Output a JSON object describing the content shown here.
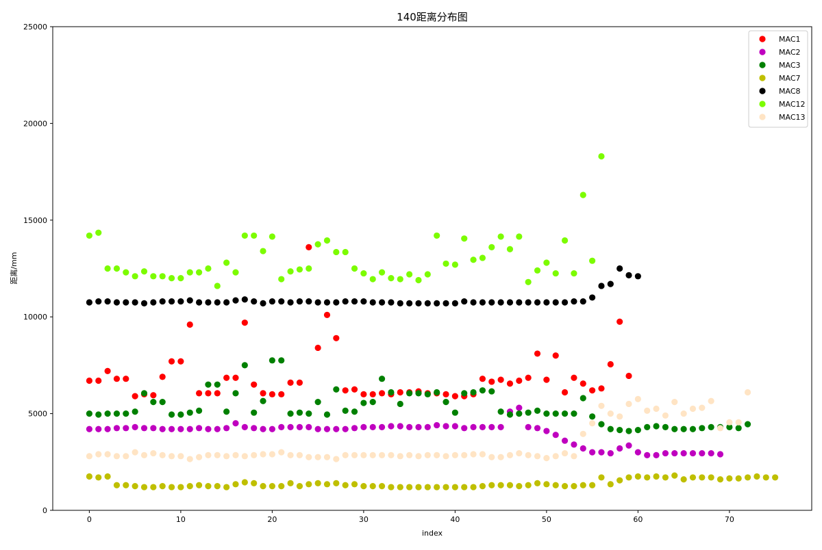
{
  "chart_data": {
    "type": "scatter",
    "title": "140距离分布图",
    "xlabel": "index",
    "ylabel": "距离/mm",
    "xlim": [
      -4,
      79
    ],
    "ylim": [
      0,
      25000
    ],
    "xticks": [
      0,
      10,
      20,
      30,
      40,
      50,
      60,
      70
    ],
    "yticks": [
      0,
      5000,
      10000,
      15000,
      20000,
      25000
    ],
    "grid": false,
    "legend": "top-right",
    "series": [
      {
        "name": "MAC1",
        "color": "#ff0000",
        "values": [
          6700,
          6700,
          7200,
          6800,
          6800,
          5900,
          6000,
          5950,
          6900,
          7700,
          7700,
          9600,
          6050,
          6050,
          6050,
          6850,
          6850,
          9700,
          6500,
          6050,
          6000,
          6000,
          6600,
          6600,
          13600,
          8400,
          10100,
          8900,
          6200,
          6250,
          6000,
          6000,
          6050,
          6000,
          6100,
          6100,
          6150,
          6050,
          6050,
          6000,
          5900,
          5900,
          6000,
          6800,
          6650,
          6750,
          6550,
          6700,
          6850,
          8100,
          6750,
          8000,
          6100,
          6850,
          6550,
          6200,
          6300,
          7550,
          9750,
          6950
        ]
      },
      {
        "name": "MAC2",
        "color": "#bf00bf",
        "values": [
          4200,
          4200,
          4200,
          4250,
          4250,
          4300,
          4250,
          4250,
          4200,
          4200,
          4200,
          4200,
          4250,
          4200,
          4200,
          4250,
          4500,
          4300,
          4250,
          4200,
          4200,
          4300,
          4300,
          4300,
          4300,
          4200,
          4200,
          4200,
          4200,
          4250,
          4300,
          4300,
          4300,
          4350,
          4350,
          4300,
          4300,
          4300,
          4400,
          4350,
          4350,
          4250,
          4300,
          4300,
          4300,
          4300,
          5100,
          5300,
          4300,
          4250,
          4100,
          3900,
          3600,
          3400,
          3200,
          3000,
          3000,
          2950,
          3200,
          3350,
          3000,
          2850,
          2850,
          2950,
          2950,
          2950,
          2950,
          2950,
          2950,
          2900
        ]
      },
      {
        "name": "MAC3",
        "color": "#008000",
        "values": [
          5000,
          4950,
          5000,
          5000,
          5000,
          5100,
          6050,
          5600,
          5600,
          4950,
          4950,
          5050,
          5150,
          6500,
          6500,
          5100,
          6050,
          7500,
          5050,
          5650,
          7750,
          7750,
          5000,
          5050,
          5000,
          5600,
          4950,
          6250,
          5150,
          5100,
          5550,
          5600,
          6800,
          6100,
          5500,
          6050,
          6050,
          6000,
          6100,
          5600,
          5050,
          6050,
          6100,
          6200,
          6150,
          5100,
          4950,
          5000,
          5050,
          5150,
          5000,
          5000,
          5000,
          5000,
          5800,
          4850,
          4450,
          4200,
          4150,
          4100,
          4150,
          4300,
          4350,
          4300,
          4200,
          4200,
          4200,
          4250,
          4300,
          4300,
          4300,
          4250,
          4450
        ]
      },
      {
        "name": "MAC7",
        "color": "#bfbf00",
        "values": [
          1750,
          1700,
          1750,
          1300,
          1300,
          1250,
          1200,
          1200,
          1250,
          1200,
          1200,
          1250,
          1300,
          1250,
          1250,
          1200,
          1350,
          1450,
          1400,
          1250,
          1250,
          1250,
          1400,
          1250,
          1350,
          1400,
          1350,
          1400,
          1300,
          1350,
          1250,
          1250,
          1250,
          1200,
          1200,
          1200,
          1200,
          1200,
          1200,
          1200,
          1200,
          1200,
          1200,
          1250,
          1300,
          1300,
          1300,
          1250,
          1300,
          1400,
          1350,
          1300,
          1250,
          1250,
          1300,
          1300,
          1700,
          1350,
          1550,
          1700,
          1750,
          1700,
          1750,
          1700,
          1800,
          1600,
          1700,
          1700,
          1700,
          1600,
          1650,
          1650,
          1700,
          1750,
          1700,
          1700
        ]
      },
      {
        "name": "MAC8",
        "color": "#000000",
        "values": [
          10750,
          10800,
          10800,
          10750,
          10750,
          10750,
          10700,
          10750,
          10800,
          10800,
          10800,
          10850,
          10750,
          10750,
          10750,
          10750,
          10850,
          10900,
          10800,
          10700,
          10800,
          10800,
          10750,
          10800,
          10800,
          10750,
          10750,
          10750,
          10800,
          10800,
          10800,
          10750,
          10750,
          10750,
          10700,
          10700,
          10700,
          10700,
          10700,
          10700,
          10700,
          10800,
          10750,
          10750,
          10750,
          10750,
          10750,
          10750,
          10750,
          10750,
          10750,
          10750,
          10750,
          10800,
          10800,
          11000,
          11600,
          11700,
          12500,
          12150,
          12100
        ]
      },
      {
        "name": "MAC12",
        "color": "#7cfc00",
        "values": [
          14200,
          14350,
          12500,
          12500,
          12300,
          12100,
          12350,
          12100,
          12100,
          12000,
          12000,
          12300,
          12300,
          12500,
          11600,
          12800,
          12300,
          14200,
          14200,
          13400,
          14150,
          11950,
          12350,
          12450,
          12500,
          13750,
          13950,
          13350,
          13350,
          12500,
          12250,
          11950,
          12300,
          12000,
          11950,
          12200,
          11900,
          12200,
          14200,
          12750,
          12700,
          14050,
          12950,
          13050,
          13600,
          14150,
          13500,
          14150,
          11800,
          12400,
          12800,
          12250,
          13950,
          12250,
          16300,
          12900,
          18300
        ]
      },
      {
        "name": "MAC13",
        "color": "#ffe4c4",
        "values": [
          2800,
          2900,
          2900,
          2800,
          2800,
          3000,
          2850,
          2950,
          2850,
          2800,
          2800,
          2650,
          2750,
          2850,
          2850,
          2800,
          2850,
          2800,
          2850,
          2900,
          2900,
          3000,
          2850,
          2850,
          2750,
          2750,
          2750,
          2650,
          2850,
          2850,
          2850,
          2850,
          2850,
          2850,
          2800,
          2850,
          2800,
          2850,
          2850,
          2800,
          2850,
          2850,
          2900,
          2900,
          2750,
          2750,
          2850,
          2950,
          2850,
          2800,
          2700,
          2800,
          2950,
          2800,
          3950,
          4500,
          5400,
          5000,
          4850,
          5500,
          5750,
          5150,
          5250,
          4900,
          5600,
          5000,
          5250,
          5300,
          5650,
          4250,
          4550,
          4550,
          6100
        ]
      }
    ]
  }
}
